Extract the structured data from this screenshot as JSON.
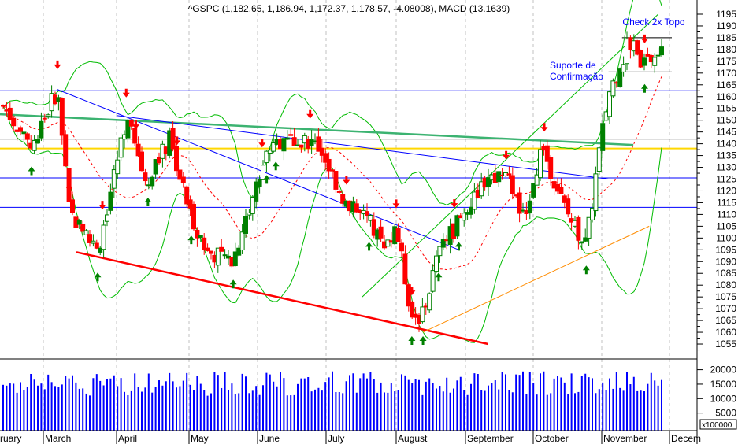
{
  "chart_data": {
    "type": "candlestick",
    "title": "^GSPC (1,182.65, 1,186.94, 1,172.37, 1,178.57, -4.08008), MACD (13.1639)",
    "ylim": [
      1050,
      1198
    ],
    "y_ticks": [
      1055,
      1060,
      1065,
      1070,
      1075,
      1080,
      1085,
      1090,
      1095,
      1100,
      1105,
      1110,
      1115,
      1120,
      1125,
      1130,
      1135,
      1140,
      1145,
      1150,
      1155,
      1160,
      1165,
      1170,
      1175,
      1180,
      1185,
      1190,
      1195
    ],
    "x_tick_labels": [
      "ruary",
      "March",
      "April",
      "May",
      "June",
      "July",
      "August",
      "September",
      "October",
      "November",
      "Decem"
    ],
    "grid": "vertical dashed at month starts",
    "price_path": [
      {
        "date": "Feb 12",
        "close": 1156
      },
      {
        "date": "Feb 24",
        "close": 1139
      },
      {
        "date": "Mar 7",
        "close": 1163
      },
      {
        "date": "Mar 12",
        "close": 1111
      },
      {
        "date": "Mar 24",
        "close": 1094
      },
      {
        "date": "Apr 5",
        "close": 1151
      },
      {
        "date": "Apr 13",
        "close": 1124
      },
      {
        "date": "Apr 23",
        "close": 1142
      },
      {
        "date": "May 1",
        "close": 1112
      },
      {
        "date": "May 9",
        "close": 1094
      },
      {
        "date": "May 21",
        "close": 1091
      },
      {
        "date": "Jun 2",
        "close": 1127
      },
      {
        "date": "Jun 7",
        "close": 1141
      },
      {
        "date": "Jun 24",
        "close": 1142
      },
      {
        "date": "Jun 29",
        "close": 1137
      },
      {
        "date": "Jul 10",
        "close": 1114
      },
      {
        "date": "Jul 20",
        "close": 1107
      },
      {
        "date": "Jul 27",
        "close": 1094
      },
      {
        "date": "Aug 1",
        "close": 1104
      },
      {
        "date": "Aug 8",
        "close": 1067
      },
      {
        "date": "Aug 13",
        "close": 1067
      },
      {
        "date": "Aug 20",
        "close": 1094
      },
      {
        "date": "Aug 29",
        "close": 1107
      },
      {
        "date": "Sep 11",
        "close": 1127
      },
      {
        "date": "Sep 21",
        "close": 1124
      },
      {
        "date": "Sep 26",
        "close": 1107
      },
      {
        "date": "Oct 5",
        "close": 1139
      },
      {
        "date": "Oct 16",
        "close": 1111
      },
      {
        "date": "Oct 25",
        "close": 1097
      },
      {
        "date": "Oct 30",
        "close": 1131
      },
      {
        "date": "Nov 4",
        "close": 1161
      },
      {
        "date": "Nov 13",
        "close": 1183
      },
      {
        "date": "Nov 20",
        "close": 1174
      },
      {
        "date": "Nov 28",
        "close": 1179
      }
    ],
    "horizontal_lines": [
      {
        "price": 1162.5,
        "color": "#0000ff",
        "span": "full"
      },
      {
        "price": 1142,
        "color": "#000000",
        "span": "full"
      },
      {
        "price": 1138,
        "color": "#ffd700",
        "span": "full"
      },
      {
        "price": 1125.5,
        "color": "#0000ff",
        "span": "full"
      },
      {
        "price": 1113,
        "color": "#0000ff",
        "span": "full"
      },
      {
        "price": 1185,
        "color": "#000000",
        "span": "Nov 10 - end"
      },
      {
        "price": 1170.5,
        "color": "#000000",
        "span": "Nov 4 - end"
      }
    ],
    "trend_lines": [
      {
        "from": [
          "Mar 7",
          1163
        ],
        "to": [
          "Aug 29",
          1095
        ],
        "color": "#0000ff"
      },
      {
        "from": [
          "Feb 1",
          1153
        ],
        "to": [
          "Nov 15",
          1139.5
        ],
        "color": "#3cb371"
      },
      {
        "from": [
          "Apr 1",
          1152
        ],
        "to": [
          "Nov 4",
          1125
        ],
        "color": "#0000ff"
      },
      {
        "from": [
          "Mar 15",
          1094
        ],
        "to": [
          "Sep 11",
          1055
        ],
        "color": "#ff0000"
      },
      {
        "from": [
          "Aug 13",
          1060
        ],
        "to": [
          "Nov 22",
          1105
        ],
        "color": "#ff8c00"
      },
      {
        "from": [
          "Jul 17",
          1075
        ],
        "to": [
          "Nov 26",
          1195
        ],
        "color": "#00bb00"
      }
    ],
    "down_arrows": [
      "Mar 7",
      "Mar 12",
      "Mar 26",
      "Apr 5",
      "Apr 9",
      "Apr 26",
      "Jun 3",
      "Jun 24",
      "Jul 10",
      "Aug 1",
      "Aug 8",
      "Aug 27",
      "Sep 19",
      "Oct 6",
      "Nov 20"
    ],
    "up_arrows": [
      "Feb 24",
      "Mar 24",
      "Apr 14",
      "May 2",
      "May 21",
      "Jun 5",
      "Jun 9",
      "Jul 20",
      "Aug 8",
      "Aug 13",
      "Aug 20",
      "Aug 29",
      "Oct 25",
      "Nov 20"
    ],
    "volume_axis": {
      "ticks": [
        5000,
        10000,
        15000,
        20000
      ],
      "unit_label": "x100000"
    },
    "annotations": [
      {
        "text": "Check 2x Topo",
        "date": "Nov 8",
        "price": 1192
      },
      {
        "text": "Suporte de\nConfirmação",
        "date": "Oct 3",
        "price": 1172
      }
    ],
    "colors": {
      "up": "#008000",
      "down": "#ff0000",
      "volume": "#0000ff",
      "bollinger": "#00bb00",
      "ma": "#ff0000"
    }
  }
}
